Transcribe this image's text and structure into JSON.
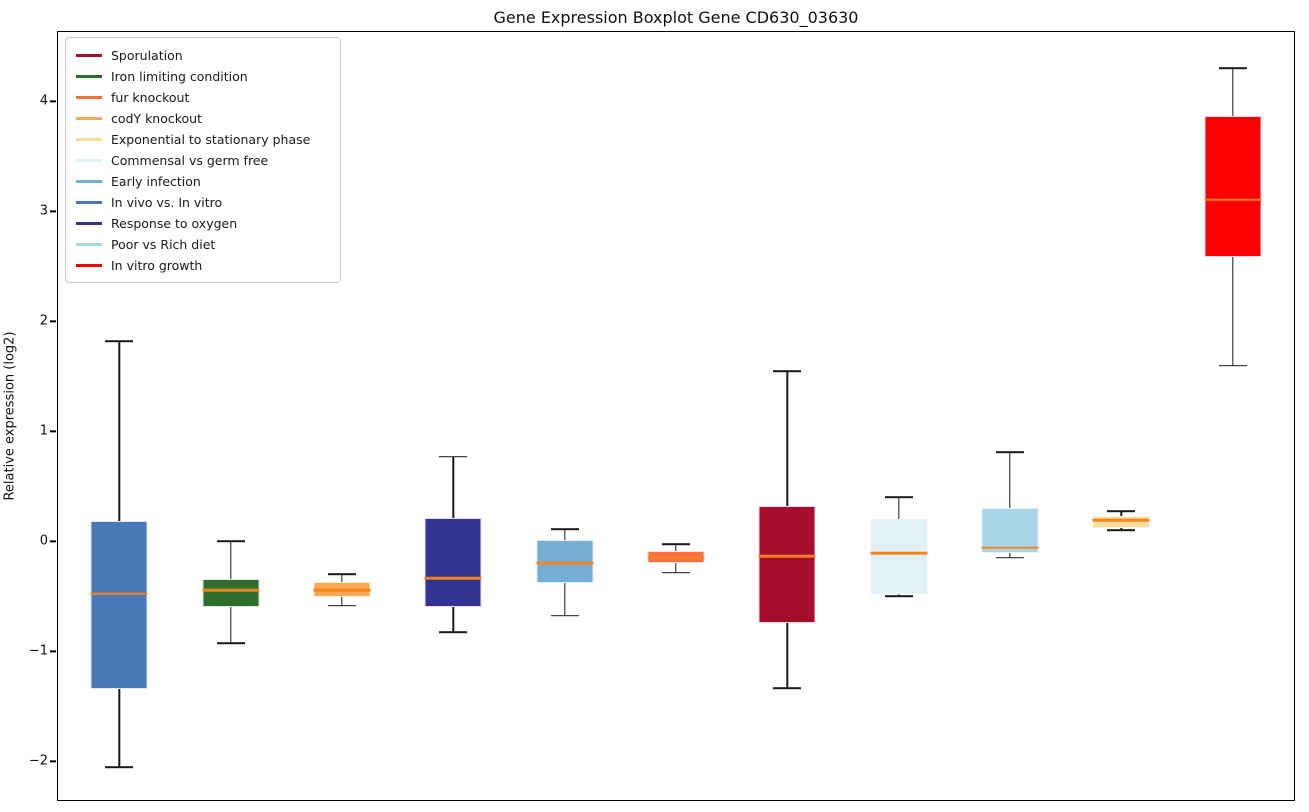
{
  "title": "Gene Expression Boxplot Gene CD630_03630",
  "chart_data": {
    "type": "boxplot",
    "title": "Gene Expression Boxplot Gene CD630_03630",
    "xlabel": "",
    "ylabel": "Relative expression (log2)",
    "ylim": [
      -2.36,
      4.64
    ],
    "yticks": [
      4,
      3,
      2,
      1,
      0,
      -1,
      -2
    ],
    "ytick_labels": [
      "4",
      "3",
      "2",
      "1",
      "0",
      "−1",
      "−2"
    ],
    "grid": false,
    "legend_position": "upper left",
    "median_color": "#F5831E",
    "legend": [
      {
        "label": "Sporulation",
        "color": "#A60C2B"
      },
      {
        "label": "Iron limiting condition",
        "color": "#2D6E2D"
      },
      {
        "label": "fur knockout",
        "color": "#F8703E"
      },
      {
        "label": "codY knockout",
        "color": "#FFA853"
      },
      {
        "label": "Exponential to stationary phase",
        "color": "#FFDD95"
      },
      {
        "label": "Commensal vs germ free",
        "color": "#E0F2F8"
      },
      {
        "label": "Early infection",
        "color": "#74AED4"
      },
      {
        "label": "In vivo vs. In vitro",
        "color": "#4878B8"
      },
      {
        "label": "Response to oxygen",
        "color": "#333390"
      },
      {
        "label": "Poor vs Rich diet",
        "color": "#A9D5E8"
      },
      {
        "label": "In vitro growth",
        "color": "#FB0000"
      }
    ],
    "series": [
      {
        "name": "In vivo vs. In vitro",
        "color": "#4878B8",
        "whisker_low": -2.06,
        "q1": -1.35,
        "median": -0.48,
        "q3": 0.18,
        "whisker_high": 1.82
      },
      {
        "name": "Iron limiting condition",
        "color": "#2D6E2D",
        "whisker_low": -0.93,
        "q1": -0.6,
        "median": -0.45,
        "q3": -0.35,
        "whisker_high": 0.0
      },
      {
        "name": "codY knockout",
        "color": "#FFA853",
        "whisker_low": -0.59,
        "q1": -0.51,
        "median": -0.45,
        "q3": -0.37,
        "whisker_high": -0.3
      },
      {
        "name": "Response to oxygen",
        "color": "#333390",
        "whisker_low": -0.83,
        "q1": -0.6,
        "median": -0.34,
        "q3": 0.21,
        "whisker_high": 0.77
      },
      {
        "name": "Early infection",
        "color": "#74AED4",
        "whisker_low": -0.68,
        "q1": -0.38,
        "median": -0.2,
        "q3": 0.01,
        "whisker_high": 0.11
      },
      {
        "name": "fur knockout",
        "color": "#F8703E",
        "whisker_low": -0.29,
        "q1": -0.2,
        "median": -0.15,
        "q3": -0.09,
        "whisker_high": -0.03
      },
      {
        "name": "Sporulation",
        "color": "#A60C2B",
        "whisker_low": -1.34,
        "q1": -0.75,
        "median": -0.14,
        "q3": 0.32,
        "whisker_high": 1.55
      },
      {
        "name": "Commensal vs germ free",
        "color": "#E0F2F8",
        "whisker_low": -0.5,
        "q1": -0.48,
        "median": -0.11,
        "q3": 0.2,
        "whisker_high": 0.4
      },
      {
        "name": "Poor vs Rich diet",
        "color": "#A9D5E8",
        "whisker_low": -0.15,
        "q1": -0.11,
        "median": -0.06,
        "q3": 0.3,
        "whisker_high": 0.81
      },
      {
        "name": "Exponential to stationary phase",
        "color": "#FFDD95",
        "whisker_low": 0.1,
        "q1": 0.12,
        "median": 0.19,
        "q3": 0.23,
        "whisker_high": 0.27
      },
      {
        "name": "In vitro growth",
        "color": "#FB0000",
        "whisker_low": 1.6,
        "q1": 2.59,
        "median": 3.11,
        "q3": 3.87,
        "whisker_high": 4.31
      }
    ]
  }
}
